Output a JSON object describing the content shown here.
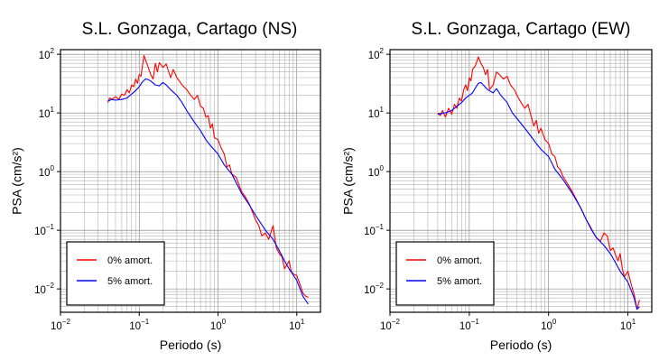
{
  "chart_data": [
    {
      "type": "line",
      "title": "S.L. Gonzaga, Cartago (NS)",
      "xlabel": "Periodo (s)",
      "ylabel": "PSA (cm/s²)",
      "xscale": "log",
      "yscale": "log",
      "xlim": [
        0.01,
        20
      ],
      "ylim": [
        0.004,
        120
      ],
      "grid": true,
      "legend_position": "bottom-left",
      "x_ticks": [
        {
          "base": "10",
          "exp": "−2"
        },
        {
          "base": "10",
          "exp": "−1"
        },
        {
          "base": "10",
          "exp": "0"
        },
        {
          "base": "10",
          "exp": "1"
        }
      ],
      "y_ticks": [
        {
          "base": "10",
          "exp": "−2"
        },
        {
          "base": "10",
          "exp": "−1"
        },
        {
          "base": "10",
          "exp": "0"
        },
        {
          "base": "10",
          "exp": "1"
        },
        {
          "base": "10",
          "exp": "2"
        }
      ],
      "series": [
        {
          "name": "0% amort.",
          "color": "#ff0000",
          "points": [
            [
              0.04,
              15
            ],
            [
              0.042,
              18
            ],
            [
              0.045,
              17
            ],
            [
              0.05,
              19
            ],
            [
              0.055,
              17
            ],
            [
              0.06,
              21
            ],
            [
              0.065,
              20
            ],
            [
              0.07,
              25
            ],
            [
              0.075,
              22
            ],
            [
              0.08,
              30
            ],
            [
              0.085,
              28
            ],
            [
              0.09,
              38
            ],
            [
              0.095,
              32
            ],
            [
              0.1,
              45
            ],
            [
              0.105,
              42
            ],
            [
              0.11,
              65
            ],
            [
              0.115,
              95
            ],
            [
              0.12,
              80
            ],
            [
              0.13,
              60
            ],
            [
              0.14,
              45
            ],
            [
              0.15,
              38
            ],
            [
              0.16,
              70
            ],
            [
              0.17,
              50
            ],
            [
              0.18,
              72
            ],
            [
              0.2,
              60
            ],
            [
              0.22,
              68
            ],
            [
              0.25,
              40
            ],
            [
              0.27,
              55
            ],
            [
              0.3,
              40
            ],
            [
              0.35,
              30
            ],
            [
              0.4,
              25
            ],
            [
              0.45,
              20
            ],
            [
              0.5,
              17
            ],
            [
              0.55,
              20
            ],
            [
              0.6,
              13
            ],
            [
              0.65,
              12
            ],
            [
              0.7,
              8.5
            ],
            [
              0.75,
              9
            ],
            [
              0.8,
              5.5
            ],
            [
              0.85,
              6.5
            ],
            [
              0.9,
              3.8
            ],
            [
              1.0,
              3.5
            ],
            [
              1.1,
              2.5
            ],
            [
              1.2,
              2
            ],
            [
              1.3,
              1.2
            ],
            [
              1.4,
              1.3
            ],
            [
              1.5,
              0.9
            ],
            [
              1.7,
              0.8
            ],
            [
              2.0,
              0.45
            ],
            [
              2.2,
              0.38
            ],
            [
              2.5,
              0.28
            ],
            [
              3.0,
              0.15
            ],
            [
              3.3,
              0.12
            ],
            [
              3.6,
              0.08
            ],
            [
              4.0,
              0.09
            ],
            [
              4.4,
              0.07
            ],
            [
              5.0,
              0.12
            ],
            [
              5.5,
              0.05
            ],
            [
              6.0,
              0.04
            ],
            [
              6.5,
              0.035
            ],
            [
              7.0,
              0.022
            ],
            [
              8.0,
              0.03
            ],
            [
              8.5,
              0.02
            ],
            [
              9.0,
              0.018
            ],
            [
              10.0,
              0.017
            ],
            [
              11.0,
              0.012
            ],
            [
              12.0,
              0.0085
            ],
            [
              13.0,
              0.0075
            ],
            [
              14.0,
              0.0072
            ]
          ]
        },
        {
          "name": "5% amort.",
          "color": "#0000ff",
          "points": [
            [
              0.04,
              16
            ],
            [
              0.045,
              17
            ],
            [
              0.05,
              16.5
            ],
            [
              0.06,
              17
            ],
            [
              0.07,
              18
            ],
            [
              0.08,
              21
            ],
            [
              0.09,
              24
            ],
            [
              0.1,
              28
            ],
            [
              0.11,
              34
            ],
            [
              0.12,
              38
            ],
            [
              0.13,
              37
            ],
            [
              0.14,
              35
            ],
            [
              0.16,
              30
            ],
            [
              0.18,
              29
            ],
            [
              0.2,
              33
            ],
            [
              0.22,
              30
            ],
            [
              0.25,
              25
            ],
            [
              0.3,
              20
            ],
            [
              0.35,
              15
            ],
            [
              0.4,
              11
            ],
            [
              0.5,
              7
            ],
            [
              0.6,
              5
            ],
            [
              0.7,
              3.5
            ],
            [
              0.8,
              2.8
            ],
            [
              1.0,
              2
            ],
            [
              1.2,
              1.3
            ],
            [
              1.5,
              0.9
            ],
            [
              2.0,
              0.42
            ],
            [
              2.5,
              0.27
            ],
            [
              3.0,
              0.18
            ],
            [
              4.0,
              0.1
            ],
            [
              5.0,
              0.07
            ],
            [
              6.0,
              0.045
            ],
            [
              7.0,
              0.03
            ],
            [
              8.0,
              0.022
            ],
            [
              10.0,
              0.014
            ],
            [
              12.0,
              0.0075
            ],
            [
              14.0,
              0.0055
            ]
          ]
        }
      ]
    },
    {
      "type": "line",
      "title": "S.L. Gonzaga, Cartago (EW)",
      "xlabel": "Periodo (s)",
      "ylabel": "PSA (cm/s²)",
      "xscale": "log",
      "yscale": "log",
      "xlim": [
        0.01,
        20
      ],
      "ylim": [
        0.004,
        120
      ],
      "grid": true,
      "legend_position": "bottom-left",
      "x_ticks": [
        {
          "base": "10",
          "exp": "−2"
        },
        {
          "base": "10",
          "exp": "−1"
        },
        {
          "base": "10",
          "exp": "0"
        },
        {
          "base": "10",
          "exp": "1"
        }
      ],
      "y_ticks": [
        {
          "base": "10",
          "exp": "−2"
        },
        {
          "base": "10",
          "exp": "−1"
        },
        {
          "base": "10",
          "exp": "0"
        },
        {
          "base": "10",
          "exp": "1"
        },
        {
          "base": "10",
          "exp": "2"
        }
      ],
      "series": [
        {
          "name": "0% amort.",
          "color": "#ff0000",
          "points": [
            [
              0.04,
              10
            ],
            [
              0.043,
              9
            ],
            [
              0.046,
              11
            ],
            [
              0.05,
              8.5
            ],
            [
              0.055,
              12
            ],
            [
              0.06,
              9.5
            ],
            [
              0.065,
              14
            ],
            [
              0.07,
              12
            ],
            [
              0.075,
              18
            ],
            [
              0.08,
              16
            ],
            [
              0.085,
              25
            ],
            [
              0.09,
              30
            ],
            [
              0.095,
              24
            ],
            [
              0.1,
              40
            ],
            [
              0.105,
              35
            ],
            [
              0.11,
              55
            ],
            [
              0.12,
              65
            ],
            [
              0.13,
              90
            ],
            [
              0.14,
              70
            ],
            [
              0.15,
              60
            ],
            [
              0.16,
              45
            ],
            [
              0.17,
              55
            ],
            [
              0.18,
              25
            ],
            [
              0.2,
              30
            ],
            [
              0.22,
              50
            ],
            [
              0.24,
              45
            ],
            [
              0.27,
              38
            ],
            [
              0.3,
              42
            ],
            [
              0.33,
              30
            ],
            [
              0.37,
              25
            ],
            [
              0.4,
              20
            ],
            [
              0.45,
              15
            ],
            [
              0.5,
              12
            ],
            [
              0.55,
              14
            ],
            [
              0.6,
              9
            ],
            [
              0.65,
              6
            ],
            [
              0.7,
              7.5
            ],
            [
              0.75,
              4.5
            ],
            [
              0.8,
              5.5
            ],
            [
              0.9,
              3.5
            ],
            [
              1.0,
              3
            ],
            [
              1.1,
              2
            ],
            [
              1.2,
              1.8
            ],
            [
              1.3,
              1.2
            ],
            [
              1.4,
              1.1
            ],
            [
              1.5,
              0.85
            ],
            [
              1.7,
              0.65
            ],
            [
              2.0,
              0.45
            ],
            [
              2.2,
              0.35
            ],
            [
              2.5,
              0.25
            ],
            [
              3.0,
              0.15
            ],
            [
              3.3,
              0.12
            ],
            [
              3.7,
              0.09
            ],
            [
              4.0,
              0.075
            ],
            [
              4.5,
              0.065
            ],
            [
              5.0,
              0.09
            ],
            [
              5.5,
              0.08
            ],
            [
              6.0,
              0.045
            ],
            [
              6.5,
              0.05
            ],
            [
              7.0,
              0.038
            ],
            [
              7.5,
              0.03
            ],
            [
              8.0,
              0.04
            ],
            [
              8.5,
              0.022
            ],
            [
              9.0,
              0.016
            ],
            [
              10.0,
              0.02
            ],
            [
              11.0,
              0.012
            ],
            [
              12.0,
              0.008
            ],
            [
              13.0,
              0.0045
            ],
            [
              14.0,
              0.0065
            ]
          ]
        },
        {
          "name": "5% amort.",
          "color": "#0000ff",
          "points": [
            [
              0.04,
              9.5
            ],
            [
              0.045,
              9.8
            ],
            [
              0.05,
              10
            ],
            [
              0.06,
              11
            ],
            [
              0.07,
              13
            ],
            [
              0.08,
              15
            ],
            [
              0.09,
              18
            ],
            [
              0.1,
              20
            ],
            [
              0.11,
              22
            ],
            [
              0.12,
              27
            ],
            [
              0.13,
              32
            ],
            [
              0.14,
              33
            ],
            [
              0.15,
              30
            ],
            [
              0.17,
              25
            ],
            [
              0.2,
              22
            ],
            [
              0.22,
              26
            ],
            [
              0.25,
              20
            ],
            [
              0.3,
              15
            ],
            [
              0.35,
              10
            ],
            [
              0.4,
              8
            ],
            [
              0.5,
              5.5
            ],
            [
              0.6,
              4
            ],
            [
              0.7,
              3
            ],
            [
              0.8,
              2.4
            ],
            [
              1.0,
              1.8
            ],
            [
              1.2,
              1.1
            ],
            [
              1.5,
              0.75
            ],
            [
              2.0,
              0.42
            ],
            [
              2.5,
              0.25
            ],
            [
              3.0,
              0.15
            ],
            [
              3.5,
              0.1
            ],
            [
              4.0,
              0.075
            ],
            [
              5.0,
              0.055
            ],
            [
              6.0,
              0.04
            ],
            [
              7.0,
              0.028
            ],
            [
              8.0,
              0.02
            ],
            [
              10.0,
              0.013
            ],
            [
              12.0,
              0.007
            ],
            [
              13.0,
              0.0045
            ],
            [
              14.0,
              0.005
            ]
          ]
        }
      ]
    }
  ]
}
